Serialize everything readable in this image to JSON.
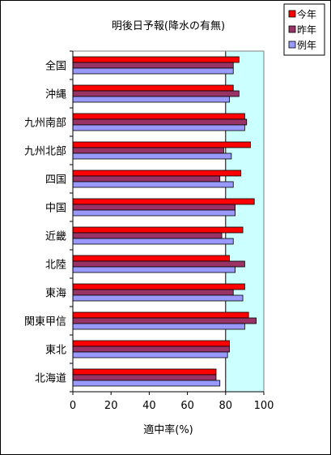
{
  "chart_data": {
    "type": "bar",
    "orientation": "horizontal",
    "title": "明後日予報(降水の有無)",
    "xlabel": "適中率(%)",
    "ylabel": "",
    "xlim": [
      0,
      100
    ],
    "x_ticks": [
      "0",
      "20",
      "40",
      "60",
      "80",
      "100"
    ],
    "grid": false,
    "reference_line": 80,
    "legend_position": "top-right",
    "categories": [
      "全国",
      "沖縄",
      "九州南部",
      "九州北部",
      "四国",
      "中国",
      "近畿",
      "北陸",
      "東海",
      "関東甲信",
      "東北",
      "北海道"
    ],
    "series": [
      {
        "name": "今年",
        "color": "#ff0000",
        "values": [
          87,
          84,
          90,
          93,
          88,
          95,
          89,
          82,
          90,
          92,
          82,
          75
        ]
      },
      {
        "name": "昨年",
        "color": "#993366",
        "values": [
          84,
          87,
          91,
          79,
          77,
          85,
          78,
          90,
          84,
          96,
          82,
          75
        ]
      },
      {
        "name": "例年",
        "color": "#9999ff",
        "values": [
          84,
          82,
          90,
          83,
          84,
          85,
          84,
          85,
          89,
          90,
          81,
          77
        ]
      }
    ],
    "plot_background": "#ccffff"
  }
}
